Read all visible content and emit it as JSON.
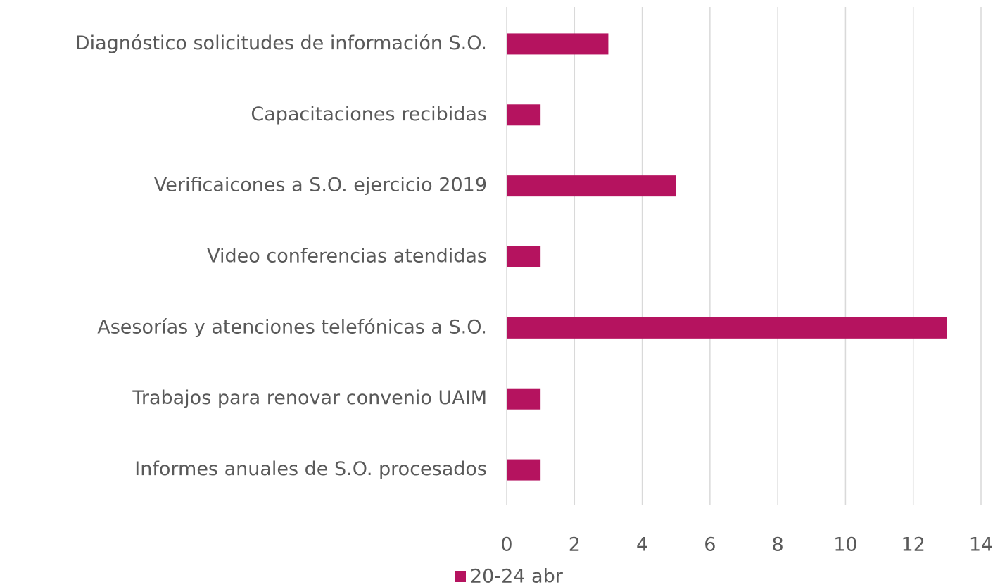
{
  "chart_data": {
    "type": "bar",
    "orientation": "horizontal",
    "categories": [
      "Diagnóstico solicitudes de información S.O.",
      "Capacitaciones recibidas",
      "Verificaicones a S.O. ejercicio 2019",
      "Video conferencias atendidas",
      "Asesorías y atenciones telefónicas a S.O.",
      "Trabajos para renovar convenio UAIM",
      "Informes anuales de S.O. procesados"
    ],
    "series": [
      {
        "name": "20-24 abr",
        "color": "#b5135f",
        "values": [
          3,
          1,
          5,
          1,
          13,
          1,
          1
        ]
      }
    ],
    "xlim": [
      0,
      14
    ],
    "xticks": [
      0,
      2,
      4,
      6,
      8,
      10,
      12,
      14
    ],
    "grid": true,
    "legend": "bottom"
  }
}
